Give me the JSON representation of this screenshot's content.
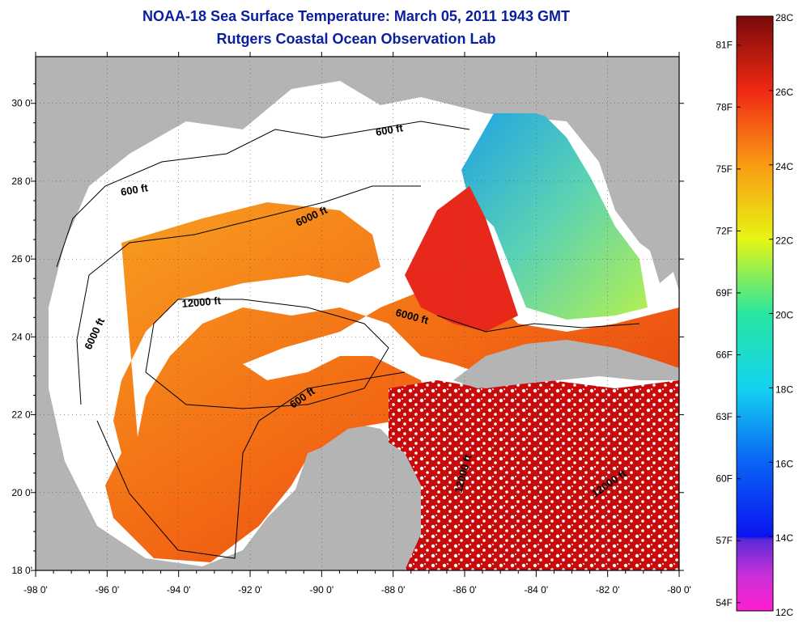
{
  "title": {
    "line1": "NOAA-18 Sea Surface Temperature:  March 05, 2011 1943 GMT",
    "line2": "Rutgers Coastal Ocean Observation Lab"
  },
  "map": {
    "lon_labels": [
      "-98 0'",
      "-96 0'",
      "-94 0'",
      "-92 0'",
      "-90 0'",
      "-88 0'",
      "-86 0'",
      "-84 0'",
      "-82 0'",
      "-80 0'"
    ],
    "lat_labels": [
      "30 0'",
      "28 0'",
      "26 0'",
      "24 0'",
      "22 0'",
      "20 0'",
      "18 0'"
    ],
    "lon_range": [
      -98,
      -80
    ],
    "lat_range": [
      18,
      31.2
    ],
    "contour_labels": [
      "600 ft",
      "600 ft",
      "6000 ft",
      "12000 ft",
      "6000 ft",
      "6000 ft",
      "600 ft",
      "12000 ft",
      "12000 ft"
    ],
    "colors": {
      "land": "#b4b4b4",
      "cloud": "#ffffff",
      "warm": "#e02010",
      "mid": "#f57a14"
    }
  },
  "colorbar": {
    "celsius": [
      "28C",
      "26C",
      "24C",
      "22C",
      "20C",
      "18C",
      "16C",
      "14C",
      "12C"
    ],
    "fahrenheit": [
      "81F",
      "78F",
      "75F",
      "72F",
      "69F",
      "66F",
      "63F",
      "60F",
      "57F",
      "54F"
    ],
    "range_c": [
      12,
      28
    ]
  }
}
